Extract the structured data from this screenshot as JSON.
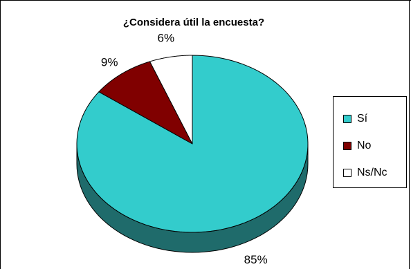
{
  "chart_data": {
    "type": "pie",
    "title": "¿Considera útil la encuesta?",
    "categories": [
      "Sí",
      "No",
      "Ns/Nc"
    ],
    "values": [
      85,
      9,
      6
    ],
    "value_labels": [
      "85%",
      "9%",
      "6%"
    ],
    "colors": [
      "#33CCCC",
      "#800000",
      "#FFFFFF"
    ],
    "side_colors": [
      "#1F6B6B",
      "#4A0000",
      "#BFBFBF"
    ],
    "style": "3d",
    "legend_position": "right"
  }
}
